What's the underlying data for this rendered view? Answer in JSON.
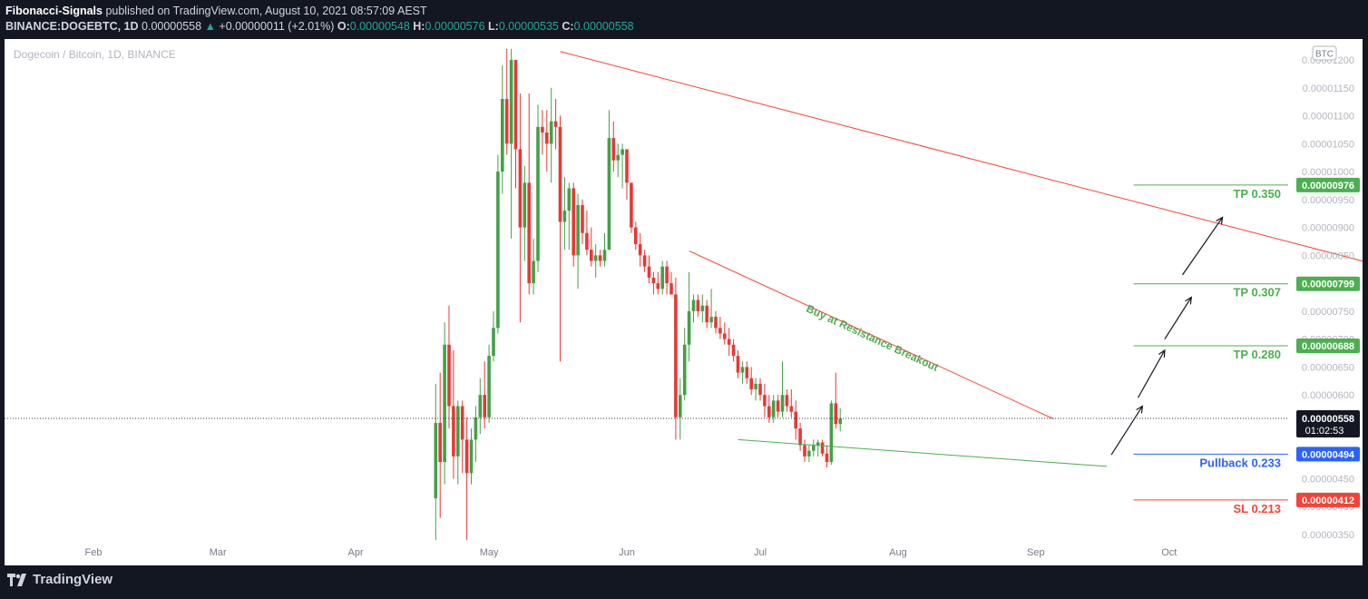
{
  "header": {
    "author": "Fibonacci-Signals",
    "published": "published on TradingView.com, August 10, 2021 08:57:09 AEST",
    "symbol": "BINANCE:DOGEBTC, 1D",
    "last": "0.00000558",
    "change": "+0.00000011 (+2.01%)",
    "o_label": "O:",
    "o": "0.00000548",
    "h_label": "H:",
    "h": "0.00000576",
    "l_label": "L:",
    "l": "0.00000535",
    "c_label": "C:",
    "c": "0.00000558"
  },
  "footer": {
    "brand": "TradingView"
  },
  "colors": {
    "up": "#43a047",
    "down": "#e53935",
    "accent_green": "#4caf50",
    "red_line": "#f44336",
    "blue": "#2962ff"
  },
  "chart_data": {
    "type": "candlestick",
    "title": "Dogecoin / Bitcoin, 1D, BINANCE",
    "currency_badge": "BTC",
    "x_ticks": [
      {
        "label": "Feb",
        "day": 17
      },
      {
        "label": "Mar",
        "day": 45
      },
      {
        "label": "Apr",
        "day": 76
      },
      {
        "label": "May",
        "day": 106
      },
      {
        "label": "Jun",
        "day": 137
      },
      {
        "label": "Jul",
        "day": 167
      },
      {
        "label": "Aug",
        "day": 198
      },
      {
        "label": "Sep",
        "day": 229
      },
      {
        "label": "Oct",
        "day": 259
      }
    ],
    "y_range": [
      3.3e-06,
      1.215e-05
    ],
    "y_ticks": [
      "0.00001200",
      "0.00001150",
      "0.00001100",
      "0.00001050",
      "0.00001000",
      "0.00000950",
      "0.00000900",
      "0.00000850",
      "0.00000800",
      "0.00000750",
      "0.00000700",
      "0.00000650",
      "0.00000600",
      "0.00000550",
      "0.00000500",
      "0.00000450",
      "0.00000400",
      "0.00000350"
    ],
    "current": {
      "price": 5.58e-06,
      "label": "0.00000558",
      "countdown": "01:02:53"
    },
    "levels": [
      {
        "name": "TP 0.350",
        "price": 9.76e-06,
        "label": "0.00000976",
        "color": "#4caf50",
        "start_day": 251
      },
      {
        "name": "TP 0.307",
        "price": 7.99e-06,
        "label": "0.00000799",
        "color": "#4caf50",
        "start_day": 251
      },
      {
        "name": "TP 0.280",
        "price": 6.88e-06,
        "label": "0.00000688",
        "color": "#4caf50",
        "start_day": 251
      },
      {
        "name": "Pullback 0.233",
        "price": 4.94e-06,
        "label": "0.00000494",
        "color": "#2962ff",
        "start_day": 251
      },
      {
        "name": "SL 0.213",
        "price": 4.12e-06,
        "label": "0.00000412",
        "color": "#f44336",
        "start_day": 251
      }
    ],
    "annotation": "Buy at Resistance Breakout",
    "trendlines": [
      {
        "color": "#f44336",
        "from": [
          122,
          1.215e-05
        ],
        "to": [
          312,
          8.2e-06
        ]
      },
      {
        "color": "#f44336",
        "from": [
          151,
          8.58e-06
        ],
        "to": [
          233,
          5.57e-06
        ]
      },
      {
        "color": "#4caf50",
        "from": [
          162,
          5.2e-06
        ],
        "to": [
          245,
          4.72e-06
        ]
      }
    ],
    "arrows": [
      {
        "from": [
          246,
          4.93e-06
        ],
        "to": [
          253,
          5.8e-06
        ]
      },
      {
        "from": [
          252,
          5.95e-06
        ],
        "to": [
          258,
          6.8e-06
        ]
      },
      {
        "from": [
          258,
          7e-06
        ],
        "to": [
          264,
          7.75e-06
        ]
      },
      {
        "from": [
          262,
          8.15e-06
        ],
        "to": [
          271,
          9.18e-06
        ]
      }
    ],
    "candles_ohlc_start_day": 94,
    "candles": [
      [
        4.15,
        6.2,
        3.4,
        5.5
      ],
      [
        5.5,
        6.4,
        3.8,
        4.8
      ],
      [
        4.8,
        7.3,
        4.4,
        6.9
      ],
      [
        6.9,
        7.6,
        5.4,
        5.8
      ],
      [
        5.8,
        6.8,
        4.5,
        4.9
      ],
      [
        4.9,
        5.9,
        4.4,
        5.8
      ],
      [
        5.8,
        5.9,
        4.6,
        5.2
      ],
      [
        5.2,
        5.6,
        3.4,
        4.6
      ],
      [
        4.6,
        5.4,
        4.4,
        5.2
      ],
      [
        5.2,
        5.8,
        4.8,
        5.6
      ],
      [
        5.6,
        6.3,
        5.3,
        6.0
      ],
      [
        6.0,
        6.6,
        5.4,
        5.6
      ],
      [
        5.6,
        6.9,
        5.5,
        6.7
      ],
      [
        6.7,
        7.5,
        6.6,
        7.2
      ],
      [
        7.2,
        10.3,
        7.1,
        10.0
      ],
      [
        10.0,
        11.9,
        9.6,
        11.3
      ],
      [
        11.3,
        12.2,
        10.3,
        10.5
      ],
      [
        10.5,
        12.2,
        8.8,
        12.0
      ],
      [
        12.0,
        12.0,
        9.7,
        10.4
      ],
      [
        10.4,
        11.4,
        7.3,
        9.0
      ],
      [
        9.0,
        10.1,
        8.4,
        9.8
      ],
      [
        9.8,
        11.4,
        7.8,
        8.0
      ],
      [
        8.0,
        8.8,
        7.8,
        8.4
      ],
      [
        8.4,
        11.2,
        8.2,
        10.8
      ],
      [
        10.8,
        11.1,
        10.3,
        10.7
      ],
      [
        10.7,
        11.1,
        10.0,
        10.5
      ],
      [
        10.5,
        11.5,
        9.8,
        10.9
      ],
      [
        10.9,
        11.3,
        10.4,
        10.8
      ],
      [
        10.8,
        11.0,
        6.6,
        9.1
      ],
      [
        9.1,
        9.9,
        8.6,
        9.3
      ],
      [
        9.3,
        9.8,
        8.6,
        9.7
      ],
      [
        9.7,
        9.8,
        8.3,
        8.5
      ],
      [
        8.5,
        9.6,
        7.9,
        9.4
      ],
      [
        9.4,
        9.5,
        8.7,
        8.9
      ],
      [
        8.9,
        9.3,
        8.5,
        8.6
      ],
      [
        8.6,
        9.0,
        8.3,
        8.4
      ],
      [
        8.4,
        8.7,
        8.1,
        8.5
      ],
      [
        8.5,
        8.6,
        8.3,
        8.4
      ],
      [
        8.4,
        8.9,
        8.3,
        8.6
      ],
      [
        8.6,
        11.1,
        8.6,
        10.6
      ],
      [
        10.6,
        10.9,
        10.0,
        10.2
      ],
      [
        10.2,
        10.5,
        9.9,
        10.3
      ],
      [
        10.3,
        10.5,
        9.7,
        10.4
      ],
      [
        10.4,
        10.4,
        9.5,
        9.8
      ],
      [
        9.8,
        9.8,
        8.9,
        9.0
      ],
      [
        9.0,
        9.1,
        8.6,
        8.7
      ],
      [
        8.7,
        8.9,
        8.3,
        8.5
      ],
      [
        8.5,
        8.6,
        8.2,
        8.3
      ],
      [
        8.3,
        8.5,
        8.0,
        8.1
      ],
      [
        8.1,
        8.2,
        7.8,
        8.0
      ],
      [
        8.0,
        8.2,
        7.8,
        7.9
      ],
      [
        7.9,
        8.4,
        7.8,
        8.3
      ],
      [
        8.3,
        8.4,
        7.8,
        8.0
      ],
      [
        8.0,
        8.2,
        7.8,
        7.8
      ],
      [
        7.8,
        8.1,
        5.2,
        5.6
      ],
      [
        5.6,
        6.3,
        5.2,
        6.0
      ],
      [
        6.0,
        7.2,
        5.9,
        6.9
      ],
      [
        6.9,
        8.2,
        6.6,
        7.5
      ],
      [
        7.5,
        7.8,
        7.3,
        7.7
      ],
      [
        7.7,
        7.8,
        7.4,
        7.5
      ],
      [
        7.5,
        7.8,
        7.3,
        7.6
      ],
      [
        7.6,
        7.7,
        7.2,
        7.3
      ],
      [
        7.3,
        7.9,
        7.2,
        7.4
      ],
      [
        7.4,
        7.5,
        7.1,
        7.2
      ],
      [
        7.2,
        7.4,
        7.0,
        7.1
      ],
      [
        7.1,
        7.3,
        6.9,
        7.0
      ],
      [
        7.0,
        7.2,
        6.7,
        6.9
      ],
      [
        6.9,
        7.0,
        6.6,
        6.7
      ],
      [
        6.7,
        6.8,
        6.3,
        6.4
      ],
      [
        6.4,
        6.6,
        6.2,
        6.5
      ],
      [
        6.5,
        6.6,
        6.2,
        6.3
      ],
      [
        6.3,
        6.5,
        6.0,
        6.1
      ],
      [
        6.1,
        6.3,
        5.9,
        6.2
      ],
      [
        6.2,
        6.3,
        5.9,
        6.0
      ],
      [
        6.0,
        6.2,
        5.6,
        5.8
      ],
      [
        5.8,
        6.0,
        5.5,
        5.6
      ],
      [
        5.6,
        6.0,
        5.5,
        5.9
      ],
      [
        5.9,
        6.0,
        5.6,
        5.7
      ],
      [
        5.7,
        6.6,
        5.6,
        6.0
      ],
      [
        6.0,
        6.1,
        5.7,
        5.8
      ],
      [
        5.8,
        6.1,
        5.6,
        5.7
      ],
      [
        5.7,
        5.9,
        5.2,
        5.4
      ],
      [
        5.4,
        5.5,
        5.0,
        5.1
      ],
      [
        5.1,
        5.2,
        4.8,
        4.9
      ],
      [
        4.9,
        5.1,
        4.8,
        5.0
      ],
      [
        5.0,
        5.2,
        4.9,
        5.1
      ],
      [
        5.1,
        5.2,
        4.9,
        5.15
      ],
      [
        5.15,
        5.2,
        4.9,
        4.95
      ],
      [
        4.95,
        5.1,
        4.7,
        4.8
      ],
      [
        4.8,
        5.9,
        4.75,
        5.85
      ],
      [
        5.85,
        6.4,
        5.4,
        5.48
      ],
      [
        5.48,
        5.76,
        5.35,
        5.58
      ]
    ]
  }
}
